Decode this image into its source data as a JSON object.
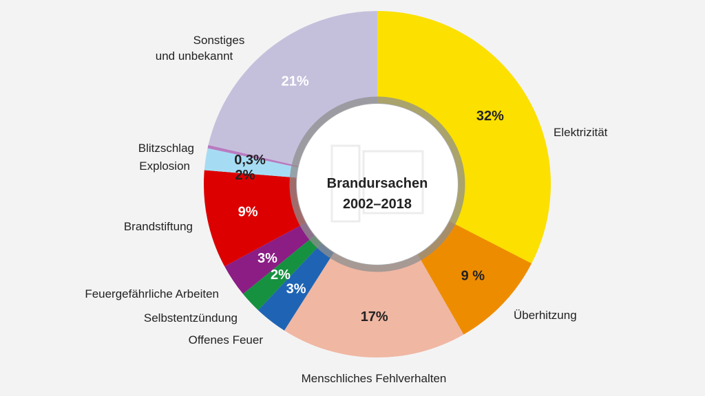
{
  "chart_data": {
    "type": "pie",
    "title": "Brandursachen",
    "subtitle": "2002–2018",
    "unit": "%",
    "slices": [
      {
        "label": "Elektrizität",
        "value": 32,
        "display": "32%",
        "color": "#fbe000",
        "text_color": "#222222"
      },
      {
        "label": "Überhitzung",
        "value": 9,
        "display": "9 %",
        "color": "#ee8c00",
        "text_color": "#222222"
      },
      {
        "label": "Menschliches Fehlverhalten",
        "value": 17,
        "display": "17%",
        "color": "#f0b7a3",
        "text_color": "#222222"
      },
      {
        "label": "Offenes Feuer",
        "value": 3,
        "display": "3%",
        "color": "#1f64b4",
        "text_color": "#ffffff"
      },
      {
        "label": "Selbstentzündung",
        "value": 2,
        "display": "2%",
        "color": "#169140",
        "text_color": "#ffffff"
      },
      {
        "label": "Feuergefährliche Arbeiten",
        "value": 3,
        "display": "3%",
        "color": "#8b1d85",
        "text_color": "#ffffff"
      },
      {
        "label": "Brandstiftung",
        "value": 9,
        "display": "9%",
        "color": "#dc0000",
        "text_color": "#ffffff"
      },
      {
        "label": "Explosion",
        "value": 2,
        "display": "2%",
        "color": "#a6dcf3",
        "text_color": "#222222"
      },
      {
        "label": "Blitzschlag",
        "value": 0.3,
        "display": "0,3%",
        "color": "#b87bc0",
        "text_color": "#222222"
      },
      {
        "label": "Sonstiges und unbekannt",
        "value": 21,
        "display": "21%",
        "color": "#c4c0dc",
        "text_color": "#ffffff"
      }
    ],
    "colors": {
      "background": "#f3f3f3",
      "inner_ring": "#8f8f8f",
      "center_fill": "#ffffff"
    }
  }
}
